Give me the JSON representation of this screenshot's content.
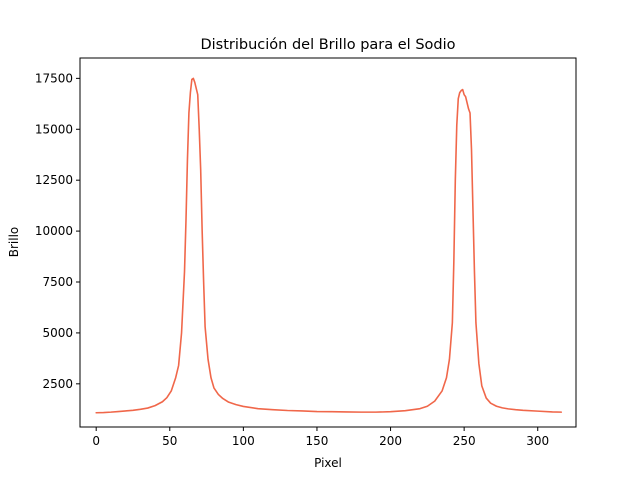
{
  "chart_data": {
    "type": "line",
    "title": "Distribución del Brillo para el Sodio",
    "xlabel": "Pixel",
    "ylabel": "Brillo",
    "xlim": [
      -11,
      326
    ],
    "ylim": [
      380,
      18500
    ],
    "xticks": [
      0,
      50,
      100,
      150,
      200,
      250,
      300
    ],
    "xtick_labels": [
      "0",
      "50",
      "100",
      "150",
      "200",
      "250",
      "300"
    ],
    "yticks": [
      2500,
      5000,
      7500,
      10000,
      12500,
      15000,
      17500
    ],
    "ytick_labels": [
      "2500",
      "5000",
      "7500",
      "10000",
      "12500",
      "15000",
      "17500"
    ],
    "grid": false,
    "legend": "none",
    "series": [
      {
        "color": "#f0674a",
        "x": [
          0,
          5,
          10,
          15,
          20,
          25,
          30,
          35,
          40,
          45,
          48,
          51,
          54,
          56,
          58,
          60,
          61,
          62,
          63,
          64,
          65,
          66,
          67,
          68,
          69,
          70,
          71,
          72,
          73,
          74,
          76,
          78,
          80,
          83,
          86,
          90,
          95,
          100,
          110,
          120,
          130,
          140,
          150,
          160,
          170,
          180,
          190,
          200,
          210,
          220,
          225,
          230,
          235,
          238,
          240,
          242,
          243,
          244,
          245,
          246,
          247,
          248,
          249,
          250,
          251,
          252,
          253,
          254,
          255,
          256,
          257,
          258,
          260,
          262,
          265,
          268,
          272,
          276,
          280,
          285,
          290,
          300,
          310,
          316
        ],
        "values": [
          1080,
          1090,
          1110,
          1140,
          1170,
          1200,
          1250,
          1310,
          1430,
          1620,
          1820,
          2150,
          2800,
          3400,
          5000,
          8000,
          10500,
          13500,
          15800,
          16800,
          17450,
          17500,
          17300,
          17000,
          16700,
          15000,
          13000,
          10000,
          7500,
          5300,
          3700,
          2800,
          2300,
          1980,
          1780,
          1600,
          1480,
          1390,
          1280,
          1230,
          1190,
          1170,
          1140,
          1130,
          1120,
          1110,
          1110,
          1130,
          1180,
          1280,
          1400,
          1650,
          2150,
          2800,
          3700,
          5500,
          8500,
          12500,
          15200,
          16500,
          16800,
          16900,
          16950,
          16700,
          16600,
          16300,
          16000,
          15800,
          14000,
          11000,
          8000,
          5500,
          3500,
          2400,
          1800,
          1550,
          1400,
          1320,
          1270,
          1230,
          1200,
          1160,
          1120,
          1110
        ]
      }
    ]
  }
}
